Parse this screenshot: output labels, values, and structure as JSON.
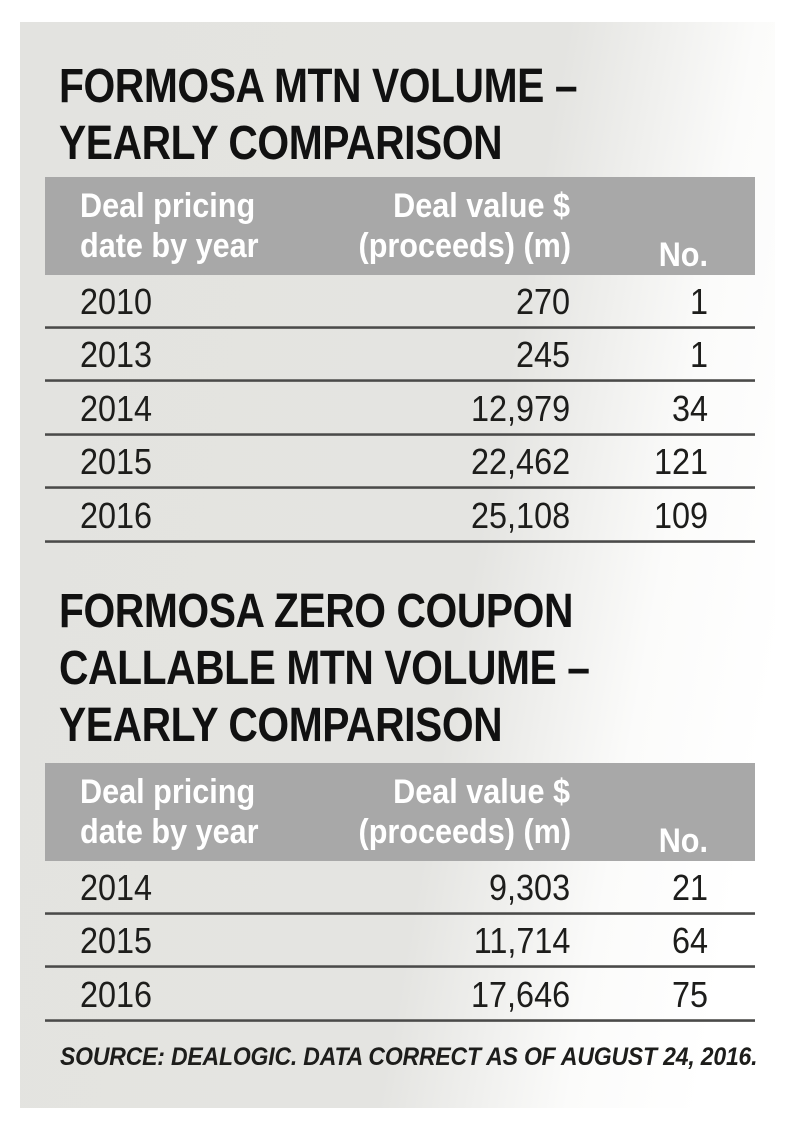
{
  "colors": {
    "page_background": "#ffffff",
    "card_gray": "#e3e3e0",
    "header_bg": "#a8a8a8",
    "header_text": "#ffffff",
    "title_text": "#111111",
    "row_text": "#1d1d1b",
    "rule_dark": "#3e3e3e"
  },
  "tables": [
    {
      "title_lines": [
        "FORMOSA MTN VOLUME –",
        "YEARLY COMPARISON"
      ],
      "header": {
        "col1_line1": "Deal pricing",
        "col1_line2": "date by year",
        "col2_line1": "Deal value $",
        "col2_line2": "(proceeds) (m)",
        "col3": "No."
      },
      "rows": [
        {
          "year": "2010",
          "value": "270",
          "count": "1"
        },
        {
          "year": "2013",
          "value": "245",
          "count": "1"
        },
        {
          "year": "2014",
          "value": "12,979",
          "count": "34"
        },
        {
          "year": "2015",
          "value": "22,462",
          "count": "121"
        },
        {
          "year": "2016",
          "value": "25,108",
          "count": "109"
        }
      ]
    },
    {
      "title_lines": [
        "FORMOSA ZERO COUPON",
        "CALLABLE MTN VOLUME –",
        "YEARLY COMPARISON"
      ],
      "header": {
        "col1_line1": "Deal pricing",
        "col1_line2": "date by year",
        "col2_line1": "Deal value $",
        "col2_line2": "(proceeds) (m)",
        "col3": "No."
      },
      "rows": [
        {
          "year": "2014",
          "value": "9,303",
          "count": "21"
        },
        {
          "year": "2015",
          "value": "11,714",
          "count": "64"
        },
        {
          "year": "2016",
          "value": "17,646",
          "count": "75"
        }
      ]
    }
  ],
  "source": "SOURCE: DEALOGIC. DATA CORRECT AS OF AUGUST 24, 2016.",
  "chart_data": [
    {
      "type": "table",
      "title": "FORMOSA MTN VOLUME – YEARLY COMPARISON",
      "columns": [
        "Deal pricing date by year",
        "Deal value $ (proceeds) (m)",
        "No."
      ],
      "rows": [
        [
          "2010",
          270,
          1
        ],
        [
          "2013",
          245,
          1
        ],
        [
          "2014",
          12979,
          34
        ],
        [
          "2015",
          22462,
          121
        ],
        [
          "2016",
          25108,
          109
        ]
      ]
    },
    {
      "type": "table",
      "title": "FORMOSA ZERO COUPON CALLABLE MTN VOLUME – YEARLY COMPARISON",
      "columns": [
        "Deal pricing date by year",
        "Deal value $ (proceeds) (m)",
        "No."
      ],
      "rows": [
        [
          "2014",
          9303,
          21
        ],
        [
          "2015",
          11714,
          64
        ],
        [
          "2016",
          17646,
          75
        ]
      ],
      "footnote": "SOURCE: DEALOGIC. DATA CORRECT AS OF AUGUST 24, 2016."
    }
  ]
}
